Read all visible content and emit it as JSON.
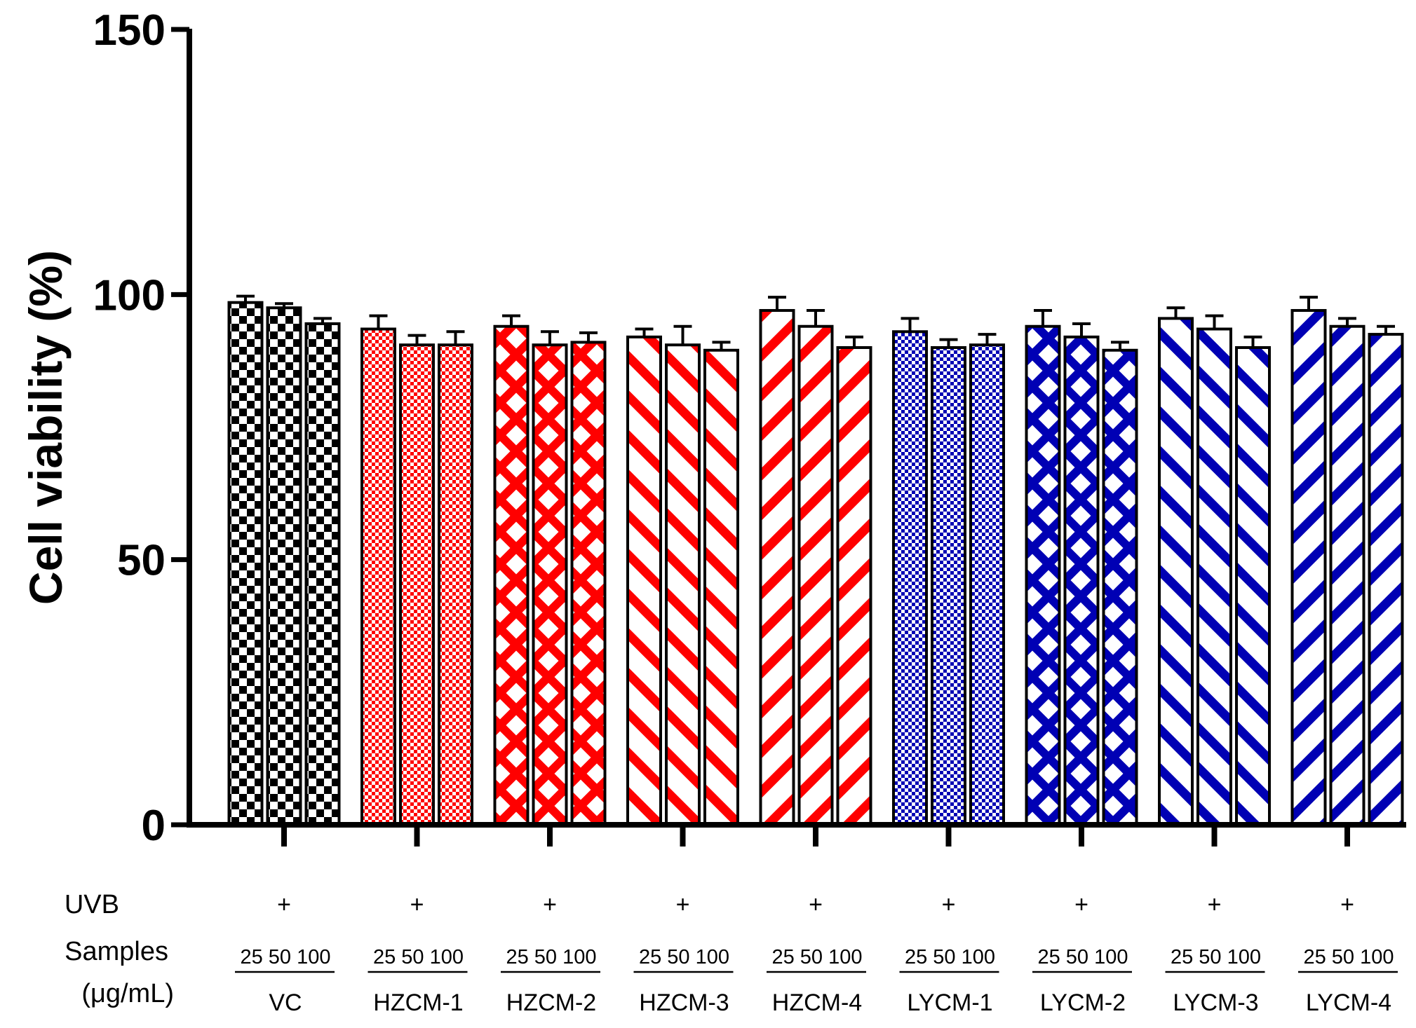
{
  "chart_data": {
    "type": "bar",
    "title": "",
    "ylabel": "Cell viability (%)",
    "xlabel": "",
    "ylim": [
      0,
      150
    ],
    "yticks": [
      "0",
      "50",
      "100",
      "150"
    ],
    "row_labels": {
      "uvb": "UVB",
      "samples_line1": "Samples",
      "samples_line2": "(μg/mL)"
    },
    "uvb_mark": "+",
    "concentrations": [
      "25",
      "50",
      "100"
    ],
    "colors": {
      "VC": "#000000",
      "HZCM": "#ff0000",
      "LYCM": "#0000b4"
    },
    "series": [
      {
        "name": "VC",
        "values": [
          98.5,
          97.5,
          94.5
        ],
        "errors": [
          1.2,
          0.8,
          1.0
        ],
        "pattern": "checker",
        "color": "#000000"
      },
      {
        "name": "HZCM-1",
        "values": [
          93.5,
          90.5,
          90.5
        ],
        "errors": [
          2.5,
          1.8,
          2.5
        ],
        "pattern": "dots",
        "color": "#ff0000"
      },
      {
        "name": "HZCM-2",
        "values": [
          94.0,
          90.5,
          91.0
        ],
        "errors": [
          2.0,
          2.5,
          1.8
        ],
        "pattern": "xcross",
        "color": "#ff0000"
      },
      {
        "name": "HZCM-3",
        "values": [
          92.0,
          90.5,
          89.5
        ],
        "errors": [
          1.5,
          3.5,
          1.5
        ],
        "pattern": "backdiag",
        "color": "#ff0000"
      },
      {
        "name": "HZCM-4",
        "values": [
          97.0,
          94.0,
          90.0
        ],
        "errors": [
          2.5,
          3.0,
          2.0
        ],
        "pattern": "fwddiag",
        "color": "#ff0000"
      },
      {
        "name": "LYCM-1",
        "values": [
          93.0,
          90.0,
          90.5
        ],
        "errors": [
          2.5,
          1.5,
          2.0
        ],
        "pattern": "dots",
        "color": "#0000b4"
      },
      {
        "name": "LYCM-2",
        "values": [
          94.0,
          92.0,
          89.5
        ],
        "errors": [
          3.0,
          2.5,
          1.5
        ],
        "pattern": "xcross",
        "color": "#0000b4"
      },
      {
        "name": "LYCM-3",
        "values": [
          95.5,
          93.5,
          90.0
        ],
        "errors": [
          2.0,
          2.5,
          2.0
        ],
        "pattern": "backdiag",
        "color": "#0000b4"
      },
      {
        "name": "LYCM-4",
        "values": [
          97.0,
          94.0,
          92.5
        ],
        "errors": [
          2.5,
          1.5,
          1.5
        ],
        "pattern": "fwddiag",
        "color": "#0000b4"
      }
    ],
    "grid": false,
    "legend": "none"
  }
}
